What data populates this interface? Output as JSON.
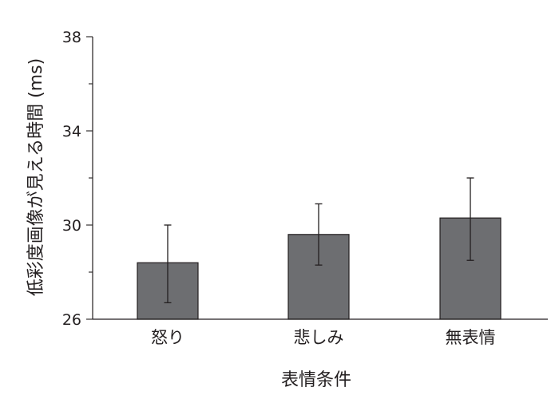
{
  "chart_data": {
    "type": "bar",
    "title": "",
    "xlabel": "表情条件",
    "ylabel": "低彩度画像が見える時間 (ms)",
    "categories": [
      "怒り",
      "悲しみ",
      "無表情"
    ],
    "values": [
      28.4,
      29.6,
      30.3
    ],
    "error_bars": {
      "lower": [
        26.7,
        28.3,
        28.5
      ],
      "upper": [
        30.0,
        30.9,
        32.0
      ]
    },
    "ylim": [
      26,
      38
    ],
    "yticks_labeled": [
      "26",
      "30",
      "34",
      "38"
    ],
    "yticks_all": [
      26,
      28,
      30,
      32,
      34,
      36,
      38
    ],
    "grid": false,
    "legend": "none",
    "colors": {
      "bar_fill": "#6d6e71",
      "bar_stroke": "#231f20",
      "axis": "#231f20",
      "text": "#231f20",
      "error_bar": "#231f20"
    }
  }
}
